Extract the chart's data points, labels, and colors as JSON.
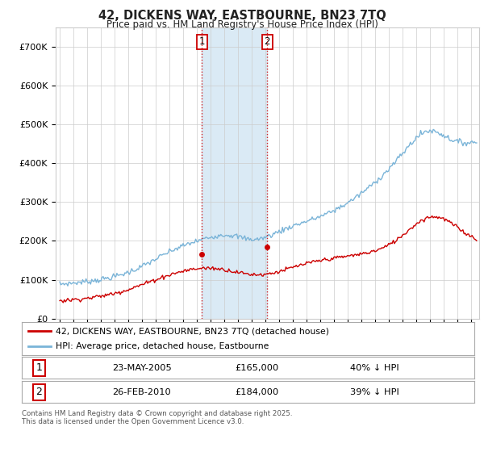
{
  "title": "42, DICKENS WAY, EASTBOURNE, BN23 7TQ",
  "subtitle": "Price paid vs. HM Land Registry's House Price Index (HPI)",
  "hpi_color": "#7ab4d8",
  "price_color": "#cc0000",
  "vline1_color": "#cc0000",
  "vline2_color": "#7ab4d8",
  "span_color": "#daeaf5",
  "ylim": [
    0,
    750000
  ],
  "yticks": [
    0,
    100000,
    200000,
    300000,
    400000,
    500000,
    600000,
    700000
  ],
  "ytick_labels": [
    "£0",
    "£100K",
    "£200K",
    "£300K",
    "£400K",
    "£500K",
    "£600K",
    "£700K"
  ],
  "transaction1_date": 2005.38,
  "transaction1_price": 165000,
  "transaction2_date": 2010.13,
  "transaction2_price": 184000,
  "legend_line1": "42, DICKENS WAY, EASTBOURNE, BN23 7TQ (detached house)",
  "legend_line2": "HPI: Average price, detached house, Eastbourne",
  "table_row1_num": "1",
  "table_row1_date": "23-MAY-2005",
  "table_row1_price": "£165,000",
  "table_row1_hpi": "40% ↓ HPI",
  "table_row2_num": "2",
  "table_row2_date": "26-FEB-2010",
  "table_row2_price": "£184,000",
  "table_row2_hpi": "39% ↓ HPI",
  "footer": "Contains HM Land Registry data © Crown copyright and database right 2025.\nThis data is licensed under the Open Government Licence v3.0.",
  "background_color": "#ffffff",
  "grid_color": "#cccccc"
}
